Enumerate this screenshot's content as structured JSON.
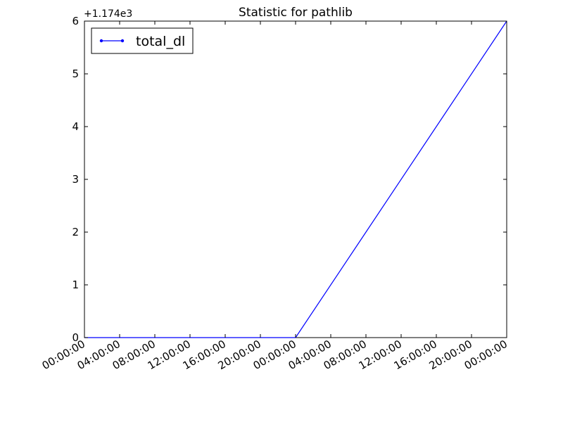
{
  "chart_data": {
    "type": "line",
    "title": "Statistic for pathlib",
    "xlabel": "",
    "ylabel": "",
    "y_offset_label": "+1.174e3",
    "x_tick_labels": [
      "00:00:00",
      "04:00:00",
      "08:00:00",
      "12:00:00",
      "16:00:00",
      "20:00:00",
      "00:00:00",
      "04:00:00",
      "08:00:00",
      "12:00:00",
      "16:00:00",
      "20:00:00",
      "00:00:00"
    ],
    "x_tick_hours": [
      0,
      4,
      8,
      12,
      16,
      20,
      24,
      28,
      32,
      36,
      40,
      44,
      48
    ],
    "x_range_hours": [
      0,
      48
    ],
    "y_ticks": [
      "0",
      "1",
      "2",
      "3",
      "4",
      "5",
      "6"
    ],
    "ylim": [
      0,
      6
    ],
    "grid": false,
    "legend_position": "top-left",
    "series": [
      {
        "name": "total_dl",
        "color": "#0000ff",
        "x_hours": [
          0,
          24,
          48
        ],
        "y": [
          0,
          0,
          6
        ]
      }
    ]
  }
}
